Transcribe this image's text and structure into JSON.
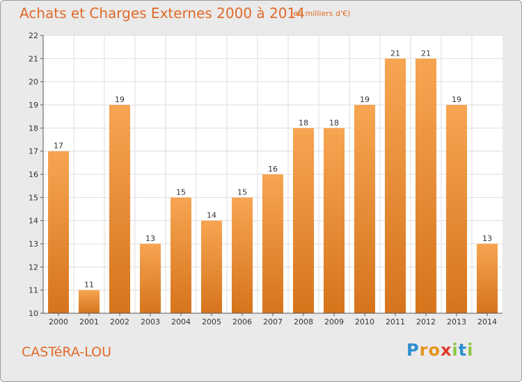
{
  "header": {
    "title": "Achats et Charges Externes 2000 à 2014",
    "subtitle": "(en milliers d'€)"
  },
  "footer": {
    "place": "CASTéRA-LOU",
    "logo_text": "Proxiti",
    "logo_colors": [
      "#2a8fd0",
      "#e5931c",
      "#e5931c",
      "#e03a2a",
      "#8cc63f",
      "#2a8fd0",
      "#8cc63f"
    ]
  },
  "colors": {
    "bar_top": "#f7a552",
    "bar_bottom": "#d6741c",
    "accent": "#e06a2a",
    "plot_background": "#ffffff",
    "grid": "#dddddd"
  },
  "chart_data": {
    "type": "bar",
    "title": "Achats et Charges Externes 2000 à 2014",
    "subtitle": "(en milliers d'€)",
    "categories": [
      "2000",
      "2001",
      "2002",
      "2003",
      "2004",
      "2005",
      "2006",
      "2007",
      "2008",
      "2009",
      "2010",
      "2011",
      "2012",
      "2013",
      "2014"
    ],
    "values": [
      17,
      11,
      19,
      13,
      15,
      14,
      15,
      16,
      18,
      18,
      19,
      21,
      21,
      19,
      13
    ],
    "ylim": [
      10,
      22
    ],
    "yticks": [
      10,
      11,
      12,
      13,
      14,
      15,
      16,
      17,
      18,
      19,
      20,
      21,
      22
    ],
    "grid": true,
    "data_labels": true
  }
}
